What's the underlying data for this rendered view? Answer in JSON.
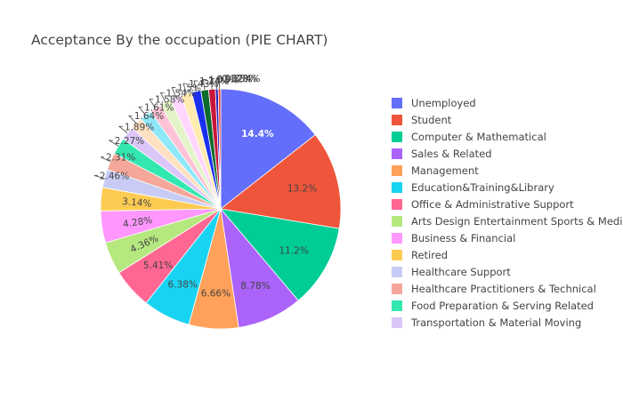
{
  "chart_data": {
    "type": "pie",
    "title": "Acceptance By the occupation (PIE CHART)",
    "legend_position": "right",
    "slices": [
      {
        "label": "Unemployed",
        "value": 14.4,
        "display": "14.4%",
        "color": "#636efa"
      },
      {
        "label": "Student",
        "value": 13.2,
        "display": "13.2%",
        "color": "#ef553b"
      },
      {
        "label": "Computer & Mathematical",
        "value": 11.2,
        "display": "11.2%",
        "color": "#00cc96"
      },
      {
        "label": "Sales & Related",
        "value": 8.78,
        "display": "8.78%",
        "color": "#ab63fa"
      },
      {
        "label": "Management",
        "value": 6.66,
        "display": "6.66%",
        "color": "#ffa15a"
      },
      {
        "label": "Education&Training&Library",
        "value": 6.38,
        "display": "6.38%",
        "color": "#19d3f3"
      },
      {
        "label": "Office & Administrative Support",
        "value": 5.41,
        "display": "5.41%",
        "color": "#ff6692"
      },
      {
        "label": "Arts Design Entertainment Sports & Media",
        "value": 4.36,
        "display": "4.36%",
        "color": "#b6e880"
      },
      {
        "label": "Business & Financial",
        "value": 4.28,
        "display": "4.28%",
        "color": "#ff97ff"
      },
      {
        "label": "Retired",
        "value": 3.14,
        "display": "3.14%",
        "color": "#fecb52"
      },
      {
        "label": "Healthcare Support",
        "value": 2.46,
        "display": "2.46%",
        "color": "#c8ccf5"
      },
      {
        "label": "Healthcare Practitioners & Technical",
        "value": 2.31,
        "display": "2.31%",
        "color": "#f4a79a"
      },
      {
        "label": "Food Preparation & Serving Related",
        "value": 2.27,
        "display": "2.27%",
        "color": "#33e8b0"
      },
      {
        "label": "Transportation & Material Moving",
        "value": 1.89,
        "display": "1.89%",
        "color": "#dcc6f7"
      },
      {
        "label": "",
        "value": 1.64,
        "display": "1.64%",
        "color": "#ffe0c0"
      },
      {
        "label": "",
        "value": 1.61,
        "display": "1.61%",
        "color": "#8fe8f8"
      },
      {
        "label": "",
        "value": 1.58,
        "display": "1.58%",
        "color": "#ffc2d6"
      },
      {
        "label": "",
        "value": 1.54,
        "display": "1.54%",
        "color": "#e2f4c8"
      },
      {
        "label": "",
        "value": 1.5,
        "display": "1.5%",
        "color": "#ffd6ff"
      },
      {
        "label": "",
        "value": 1.43,
        "display": "1.43%",
        "color": "#ffeab0"
      },
      {
        "label": "",
        "value": 1.24,
        "display": "1.24%",
        "color": "#1a2ff0"
      },
      {
        "label": "",
        "value": 1.03,
        "display": "1.03%",
        "color": "#0e6b2e"
      },
      {
        "label": "",
        "value": 0.902,
        "display": "0.902%",
        "color": "#c8163a"
      },
      {
        "label": "",
        "value": 0.378,
        "display": "0.378%",
        "color": "#2b1fbf"
      },
      {
        "label": "",
        "value": 0.334,
        "display": "0.334%",
        "color": "#e8413a"
      }
    ]
  }
}
